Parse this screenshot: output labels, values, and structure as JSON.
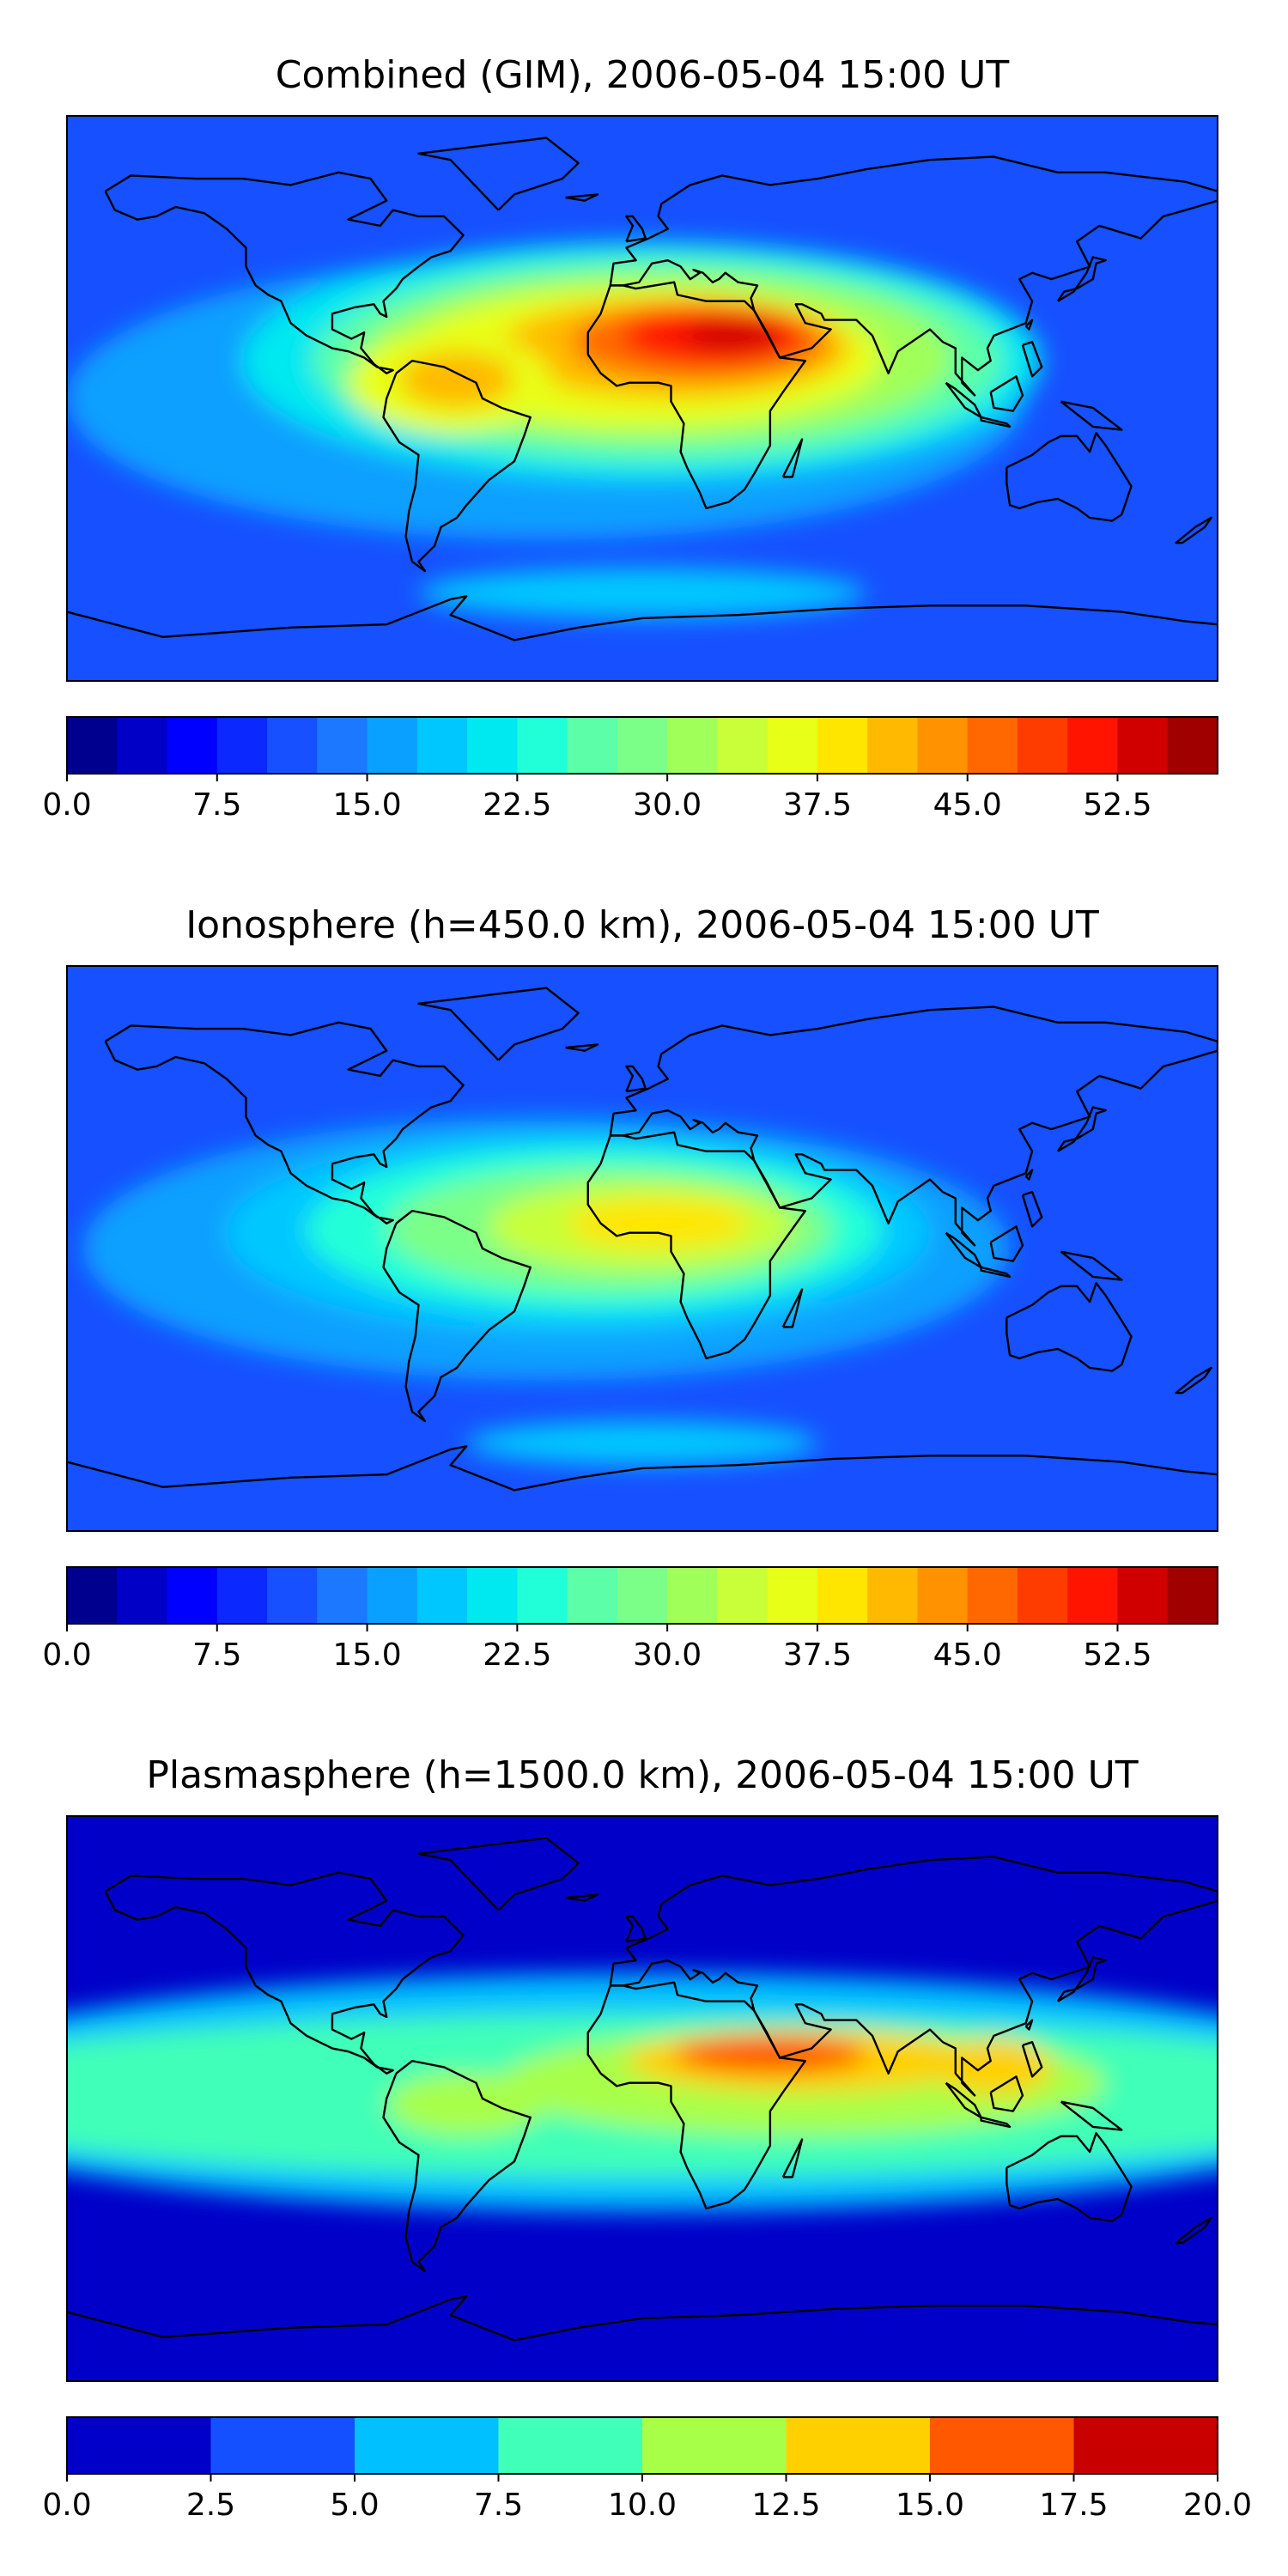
{
  "panels": [
    {
      "title": "Combined (GIM), 2006-05-04 15:00 UT",
      "colorbar": {
        "ticks": [
          "0.0",
          "7.5",
          "15.0",
          "22.5",
          "30.0",
          "37.5",
          "45.0",
          "52.5"
        ],
        "colors": [
          "#00008f",
          "#0000c6",
          "#0000fe",
          "#0a28ff",
          "#1650ff",
          "#1c78ff",
          "#0aa0ff",
          "#00c8ff",
          "#00e8f0",
          "#20ffd8",
          "#5cffa8",
          "#7cff88",
          "#a0ff58",
          "#c8ff38",
          "#e8ff18",
          "#ffe600",
          "#ffba00",
          "#ff9200",
          "#ff6800",
          "#ff3c00",
          "#ff1400",
          "#d00000",
          "#a00000"
        ]
      },
      "blobs": [
        {
          "lon": -30,
          "lat": 0,
          "rx": 150,
          "ry": 45,
          "color": "#0aa0ff"
        },
        {
          "lon": 0,
          "lat": 12,
          "rx": 125,
          "ry": 38,
          "color": "#00e8f0"
        },
        {
          "lon": 5,
          "lat": 12,
          "rx": 108,
          "ry": 32,
          "color": "#5cffa8"
        },
        {
          "lon": 5,
          "lat": 13,
          "rx": 92,
          "ry": 27,
          "color": "#a0ff58"
        },
        {
          "lon": 0,
          "lat": 13,
          "rx": 75,
          "ry": 22,
          "color": "#e8ff18"
        },
        {
          "lon": 10,
          "lat": 16,
          "rx": 55,
          "ry": 16,
          "color": "#ffba00"
        },
        {
          "lon": 18,
          "lat": 18,
          "rx": 40,
          "ry": 12,
          "color": "#ff6800"
        },
        {
          "lon": 22,
          "lat": 20,
          "rx": 28,
          "ry": 9,
          "color": "#ff1400"
        },
        {
          "lon": 28,
          "lat": 20,
          "rx": 15,
          "ry": 5,
          "color": "#d00000"
        },
        {
          "lon": -60,
          "lat": 5,
          "rx": 32,
          "ry": 16,
          "color": "#e8ff18"
        },
        {
          "lon": -58,
          "lat": 6,
          "rx": 18,
          "ry": 9,
          "color": "#ffba00"
        },
        {
          "lon": 0,
          "lat": -62,
          "rx": 70,
          "ry": 8,
          "color": "#00c8ff"
        }
      ]
    },
    {
      "title": "Ionosphere  (h=450.0 km), 2006-05-04 15:00 UT",
      "colorbar": {
        "ticks": [
          "0.0",
          "7.5",
          "15.0",
          "22.5",
          "30.0",
          "37.5",
          "45.0",
          "52.5"
        ],
        "colors": [
          "#00008f",
          "#0000c6",
          "#0000fe",
          "#0a28ff",
          "#1650ff",
          "#1c78ff",
          "#0aa0ff",
          "#00c8ff",
          "#00e8f0",
          "#20ffd8",
          "#5cffa8",
          "#7cff88",
          "#a0ff58",
          "#c8ff38",
          "#e8ff18",
          "#ffe600",
          "#ffba00",
          "#ff9200",
          "#ff6800",
          "#ff3c00",
          "#ff1400",
          "#d00000",
          "#a00000"
        ]
      },
      "blobs": [
        {
          "lon": -30,
          "lat": 0,
          "rx": 145,
          "ry": 42,
          "color": "#0aa0ff"
        },
        {
          "lon": -20,
          "lat": 5,
          "rx": 110,
          "ry": 32,
          "color": "#00c8ff"
        },
        {
          "lon": -15,
          "lat": 6,
          "rx": 90,
          "ry": 26,
          "color": "#20ffd8"
        },
        {
          "lon": -10,
          "lat": 6,
          "rx": 70,
          "ry": 20,
          "color": "#7cff88"
        },
        {
          "lon": 0,
          "lat": 7,
          "rx": 48,
          "ry": 14,
          "color": "#c8ff38"
        },
        {
          "lon": 5,
          "lat": 8,
          "rx": 28,
          "ry": 8,
          "color": "#ffe600"
        },
        {
          "lon": 0,
          "lat": -62,
          "rx": 55,
          "ry": 7,
          "color": "#00c8ff"
        }
      ]
    },
    {
      "title": "Plasmasphere (h=1500.0 km), 2006-05-04 15:00 UT",
      "colorbar": {
        "ticks": [
          "0.0",
          "2.5",
          "5.0",
          "7.5",
          "10.0",
          "12.5",
          "15.0",
          "17.5",
          "20.0"
        ],
        "colors": [
          "#0000c8",
          "#1450ff",
          "#00c0ff",
          "#40ffb8",
          "#a8ff48",
          "#ffd000",
          "#ff5800",
          "#c80000"
        ]
      },
      "blobs": [
        {
          "lon": 0,
          "lat": 2,
          "rx": 240,
          "ry": 38,
          "color": "#00c0ff"
        },
        {
          "lon": 0,
          "lat": 1,
          "rx": 240,
          "ry": 26,
          "color": "#40ffb8"
        },
        {
          "lon": 50,
          "lat": 5,
          "rx": 95,
          "ry": 17,
          "color": "#a8ff48"
        },
        {
          "lon": -55,
          "lat": -2,
          "rx": 25,
          "ry": 10,
          "color": "#a8ff48"
        },
        {
          "lon": 50,
          "lat": 12,
          "rx": 55,
          "ry": 10,
          "color": "#ffd000"
        },
        {
          "lon": 110,
          "lat": 10,
          "rx": 18,
          "ry": 9,
          "color": "#ffd000"
        },
        {
          "lon": 40,
          "lat": 14,
          "rx": 30,
          "ry": 6,
          "color": "#ff5800"
        }
      ]
    }
  ]
}
